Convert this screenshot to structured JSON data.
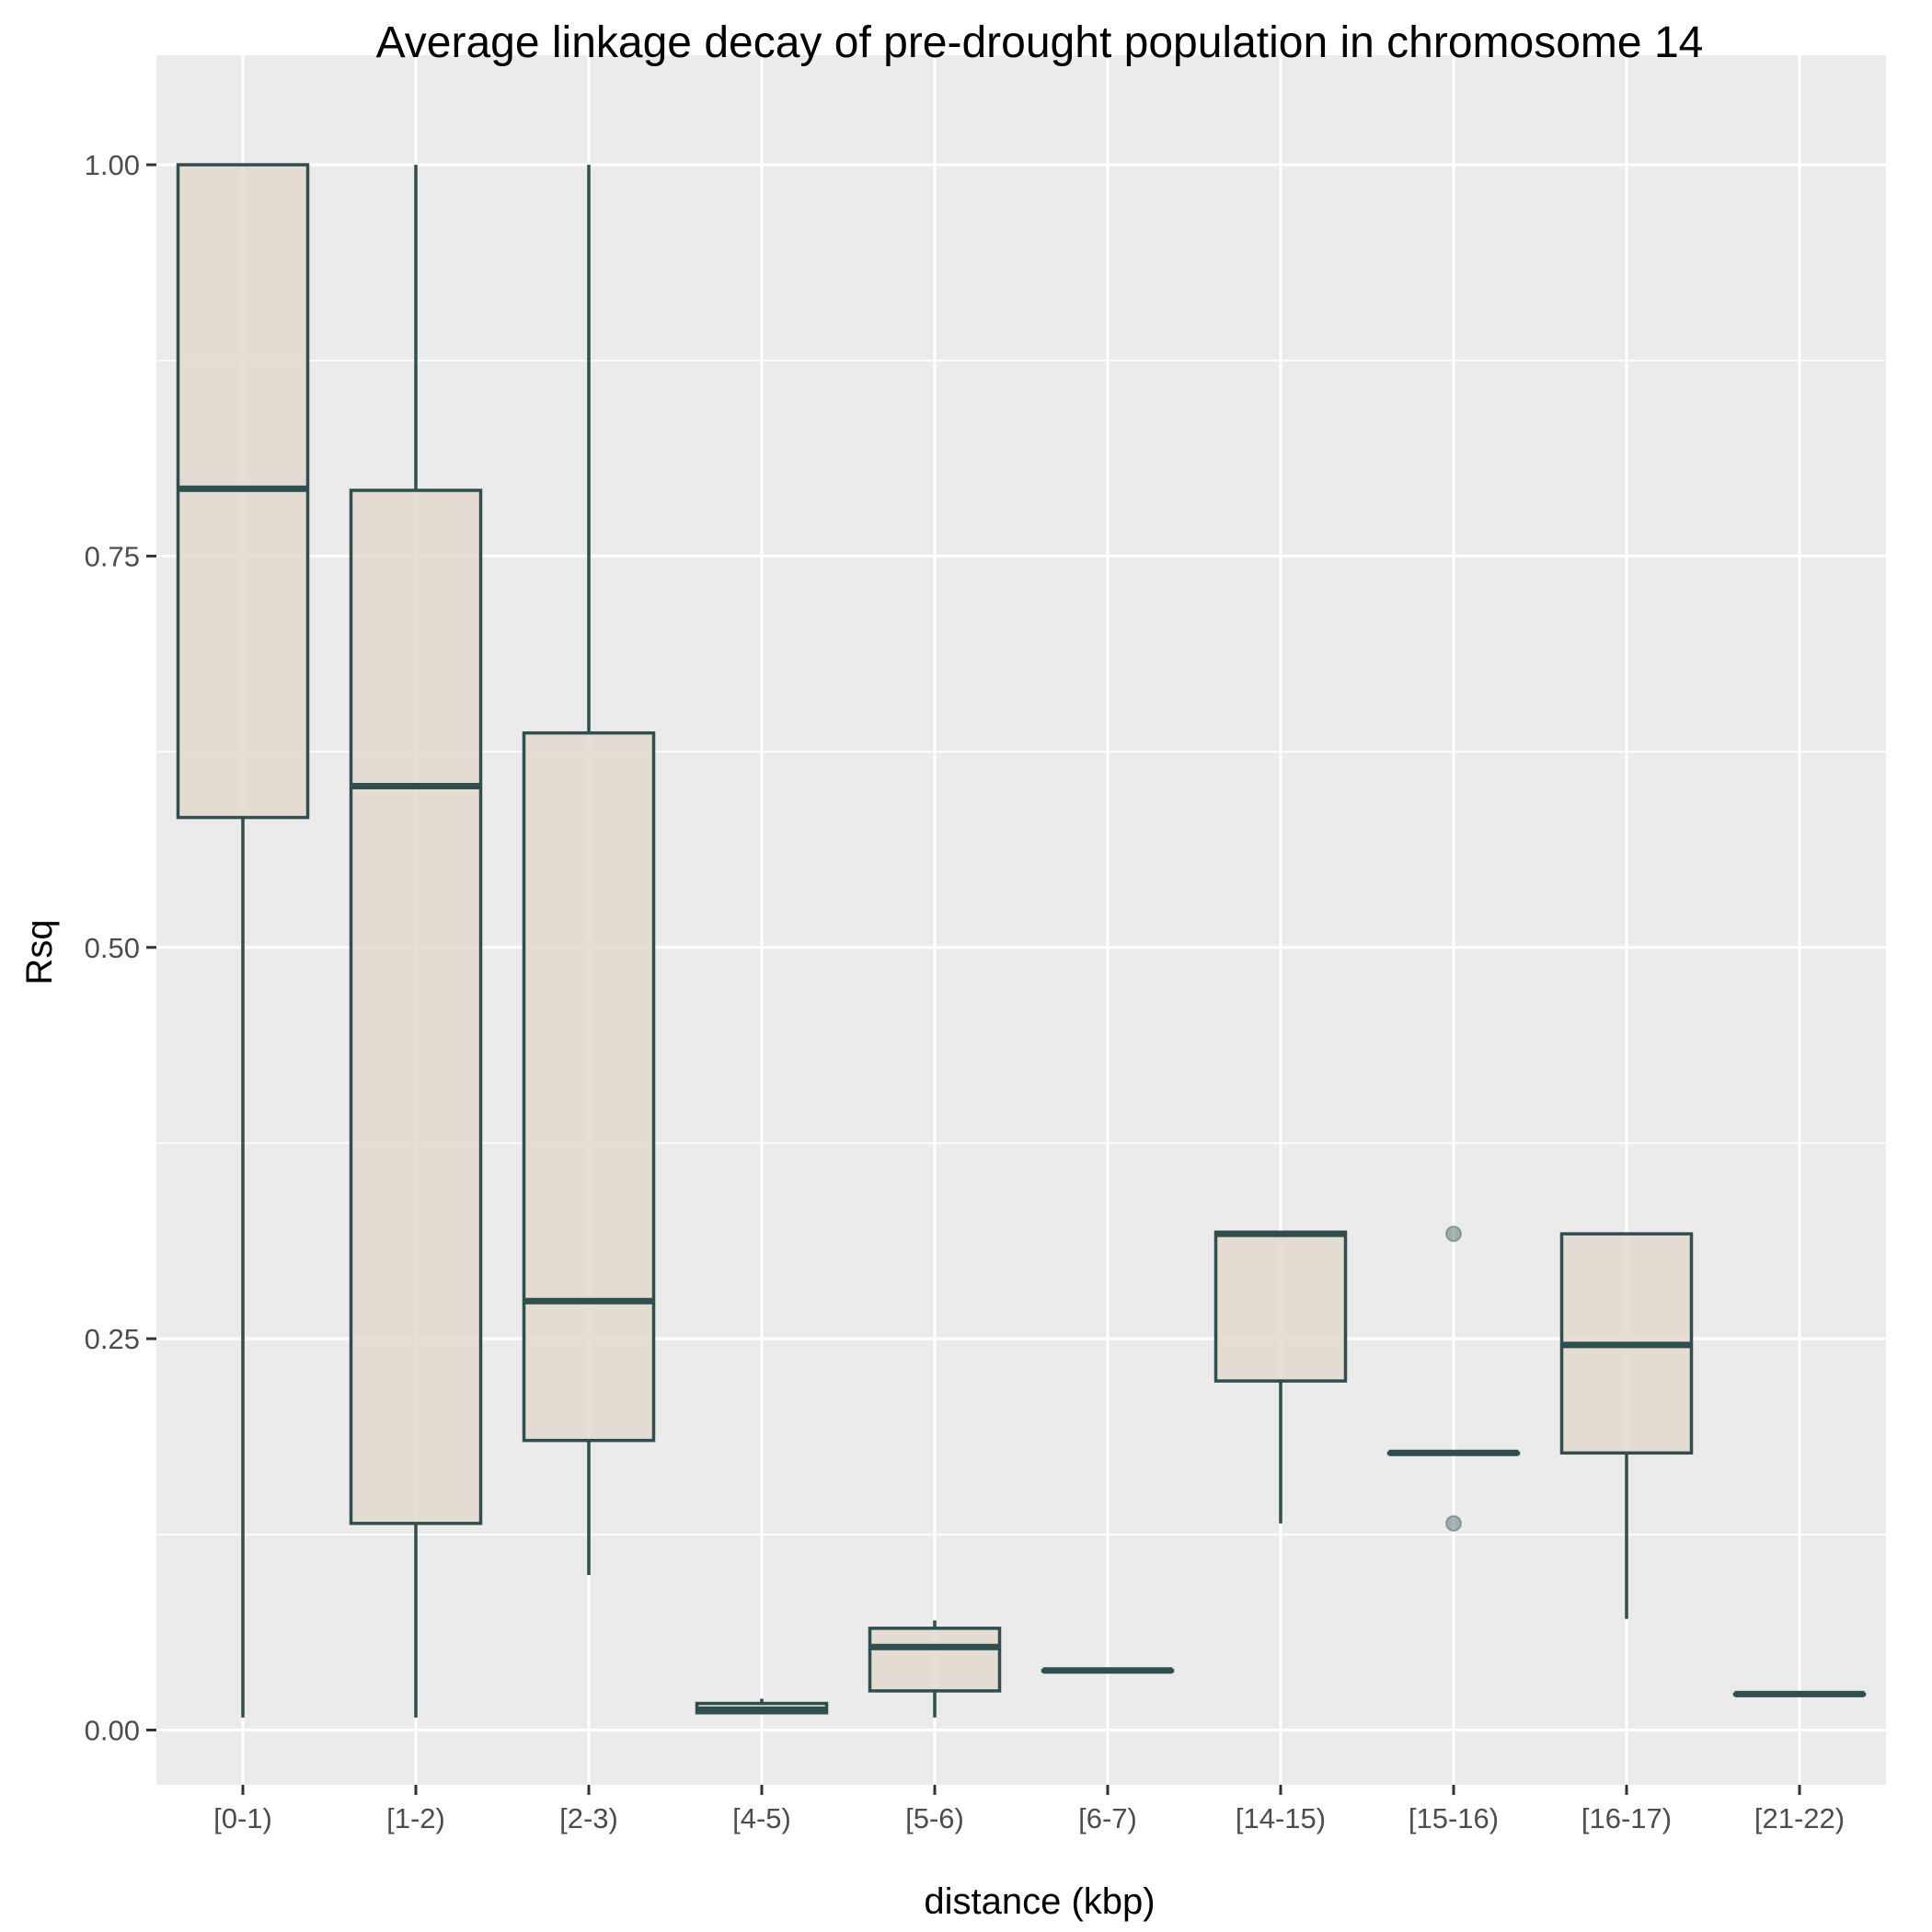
{
  "chart_data": {
    "type": "boxplot",
    "title": "Average linkage decay of pre-drought population in chromosome  14",
    "xlabel": "distance (kbp)",
    "ylabel": "Rsq",
    "ylim": [
      -0.035,
      1.07
    ],
    "yticks": [
      0.0,
      0.25,
      0.5,
      0.75,
      1.0
    ],
    "ytick_labels": [
      "0.00",
      "0.25",
      "0.50",
      "0.75",
      "1.00"
    ],
    "grid": true,
    "colors": {
      "panel": "#ebebeb",
      "grid": "#ffffff",
      "box_fill": "#e3d9ce",
      "box_stroke": "#2f4f4f",
      "outlier": "#2f4f4f"
    },
    "categories": [
      "[0-1)",
      "[1-2)",
      "[2-3)",
      "[4-5)",
      "[5-6)",
      "[6-7)",
      "[14-15)",
      "[15-16)",
      "[16-17)",
      "[21-22)"
    ],
    "boxes": [
      {
        "category": "[0-1)",
        "whisker_low": 0.008,
        "q1": 0.583,
        "median": 0.793,
        "q3": 1.0,
        "whisker_high": 1.0,
        "outliers": []
      },
      {
        "category": "[1-2)",
        "whisker_low": 0.008,
        "q1": 0.132,
        "median": 0.603,
        "q3": 0.792,
        "whisker_high": 1.0,
        "outliers": []
      },
      {
        "category": "[2-3)",
        "whisker_low": 0.099,
        "q1": 0.185,
        "median": 0.274,
        "q3": 0.637,
        "whisker_high": 1.0,
        "outliers": []
      },
      {
        "category": "[4-5)",
        "whisker_low": 0.011,
        "q1": 0.011,
        "median": 0.013,
        "q3": 0.017,
        "whisker_high": 0.02,
        "outliers": []
      },
      {
        "category": "[5-6)",
        "whisker_low": 0.008,
        "q1": 0.025,
        "median": 0.053,
        "q3": 0.065,
        "whisker_high": 0.07,
        "outliers": []
      },
      {
        "category": "[6-7)",
        "whisker_low": 0.038,
        "q1": 0.038,
        "median": 0.038,
        "q3": 0.038,
        "whisker_high": 0.038,
        "outliers": []
      },
      {
        "category": "[14-15)",
        "whisker_low": 0.132,
        "q1": 0.223,
        "median": 0.317,
        "q3": 0.318,
        "whisker_high": 0.318,
        "outliers": []
      },
      {
        "category": "[15-16)",
        "whisker_low": 0.177,
        "q1": 0.177,
        "median": 0.177,
        "q3": 0.177,
        "whisker_high": 0.177,
        "outliers": [
          0.317,
          0.132
        ]
      },
      {
        "category": "[16-17)",
        "whisker_low": 0.071,
        "q1": 0.177,
        "median": 0.246,
        "q3": 0.317,
        "whisker_high": 0.317,
        "outliers": []
      },
      {
        "category": "[21-22)",
        "whisker_low": 0.023,
        "q1": 0.023,
        "median": 0.023,
        "q3": 0.023,
        "whisker_high": 0.023,
        "outliers": []
      }
    ]
  }
}
